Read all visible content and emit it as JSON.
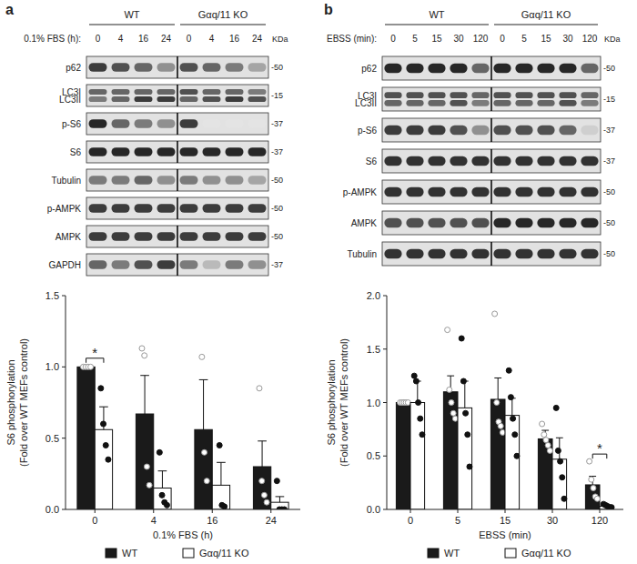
{
  "panel_labels": [
    "a",
    "b"
  ],
  "blots": [
    {
      "groups": [
        "WT",
        "Gαq/11 KO"
      ],
      "condition": "0.1% FBS (h):",
      "lanes": [
        "0",
        "4",
        "16",
        "24",
        "0",
        "4",
        "16",
        "24"
      ],
      "kda_header": "KDa",
      "rows": [
        {
          "label": [
            "p62"
          ],
          "kda": "-50",
          "bands": [
            [
              0.8,
              0.7,
              0.6,
              0.4,
              0.7,
              0.6,
              0.5,
              0.3
            ]
          ]
        },
        {
          "label": [
            "LC3I",
            "LC3II"
          ],
          "kda": "-15",
          "bands": [
            [
              0.6,
              0.6,
              0.6,
              0.6,
              0.7,
              0.6,
              0.6,
              0.5
            ],
            [
              0.5,
              0.6,
              0.8,
              0.8,
              0.6,
              0.7,
              0.8,
              0.7
            ]
          ]
        },
        {
          "label": [
            "p-S6"
          ],
          "kda": "-37",
          "bands": [
            [
              0.9,
              0.6,
              0.5,
              0.4,
              0.8,
              0,
              0,
              0
            ]
          ]
        },
        {
          "label": [
            "S6"
          ],
          "kda": "-37",
          "bands": [
            [
              0.9,
              0.9,
              0.9,
              0.9,
              0.9,
              0.9,
              0.9,
              0.9
            ]
          ]
        },
        {
          "label": [
            "Tubulin"
          ],
          "kda": "-50",
          "bands": [
            [
              0.5,
              0.5,
              0.6,
              0.4,
              0.5,
              0.4,
              0.4,
              0.3
            ]
          ]
        },
        {
          "label": [
            "p-AMPK"
          ],
          "kda": "-50",
          "bands": [
            [
              0.8,
              0.8,
              0.8,
              0.8,
              0.8,
              0.8,
              0.8,
              0.8
            ]
          ]
        },
        {
          "label": [
            "AMPK"
          ],
          "kda": "-50",
          "bands": [
            [
              0.8,
              0.8,
              0.8,
              0.8,
              0.8,
              0.8,
              0.8,
              0.8
            ]
          ]
        },
        {
          "label": [
            "GAPDH"
          ],
          "kda": "-37",
          "bands": [
            [
              0.6,
              0.5,
              0.7,
              0.8,
              0.5,
              0.2,
              0.5,
              0.4
            ]
          ]
        }
      ]
    },
    {
      "groups": [
        "WT",
        "Gαq/11 KO"
      ],
      "condition": "EBSS (min):",
      "lanes": [
        "0",
        "5",
        "15",
        "30",
        "120",
        "0",
        "5",
        "15",
        "30",
        "120"
      ],
      "kda_header": "KDa",
      "rows": [
        {
          "label": [
            "p62"
          ],
          "kda": "-50",
          "bands": [
            [
              0.9,
              0.9,
              0.9,
              0.9,
              0.6,
              0.9,
              0.9,
              0.9,
              0.9,
              0.6
            ]
          ]
        },
        {
          "label": [
            "LC3I",
            "LC3II"
          ],
          "kda": "-15",
          "bands": [
            [
              0.7,
              0.7,
              0.7,
              0.7,
              0.6,
              0.7,
              0.7,
              0.7,
              0.7,
              0.6
            ],
            [
              0.6,
              0.6,
              0.6,
              0.7,
              0.5,
              0.6,
              0.6,
              0.6,
              0.7,
              0.5
            ]
          ]
        },
        {
          "label": [
            "p-S6"
          ],
          "kda": "-37",
          "bands": [
            [
              0.8,
              0.8,
              0.8,
              0.7,
              0.4,
              0.7,
              0.7,
              0.7,
              0.6,
              0.1
            ]
          ]
        },
        {
          "label": [
            "S6"
          ],
          "kda": "-37",
          "bands": [
            [
              0.85,
              0.85,
              0.85,
              0.85,
              0.85,
              0.85,
              0.85,
              0.85,
              0.85,
              0.85
            ]
          ]
        },
        {
          "label": [
            "p-AMPK"
          ],
          "kda": "-50",
          "bands": [
            [
              0.85,
              0.85,
              0.85,
              0.85,
              0.85,
              0.85,
              0.85,
              0.85,
              0.85,
              0.85
            ]
          ]
        },
        {
          "label": [
            "AMPK"
          ],
          "kda": "-50",
          "bands": [
            [
              0.7,
              0.7,
              0.7,
              0.7,
              0.7,
              0.9,
              0.9,
              0.9,
              0.9,
              0.9
            ]
          ]
        },
        {
          "label": [
            "Tubulin"
          ],
          "kda": "-50",
          "bands": [
            [
              0.85,
              0.85,
              0.85,
              0.85,
              0.85,
              0.85,
              0.85,
              0.85,
              0.85,
              0.85
            ]
          ]
        }
      ]
    }
  ],
  "chart_data": [
    {
      "type": "bar",
      "ylabel": [
        "S6 phosphorylation",
        "(Fold over WT MEFs control)"
      ],
      "xlabel": "0.1% FBS (h)",
      "categories": [
        "0",
        "4",
        "16",
        "24"
      ],
      "ylim": [
        0,
        1.5
      ],
      "yticks": [
        {
          "value": 0,
          "label": "0.0"
        },
        0.5,
        {
          "value": 1,
          "label": "1.0"
        },
        1.5
      ],
      "legend": "bottom",
      "series": [
        {
          "name": "WT",
          "color": "#1a1a1a",
          "marker": "open",
          "values": [
            1.0,
            0.67,
            0.56,
            0.3
          ],
          "errors": [
            0.01,
            0.27,
            0.35,
            0.18
          ],
          "points": [
            [
              1.0,
              1.0,
              1.0,
              1.0
            ],
            [
              1.13,
              1.08,
              0.3,
              0.17
            ],
            [
              1.07,
              0.4,
              0.2
            ],
            [
              0.85,
              0.2,
              0.1,
              0.05
            ]
          ]
        },
        {
          "name": "Gαq/11 KO",
          "color": "#ffffff",
          "marker": "filled",
          "values": [
            0.56,
            0.15,
            0.17,
            0.05
          ],
          "errors": [
            0.16,
            0.12,
            0.16,
            0.04
          ],
          "points": [
            [
              0.85,
              0.6,
              0.45,
              0.35
            ],
            [
              0.4,
              0.1,
              0.05,
              0.03
            ],
            [
              0.45,
              0.03,
              0.02
            ],
            [
              0.2,
              0.0,
              0.0,
              0.0
            ]
          ]
        }
      ],
      "annotations": [
        {
          "text": "*",
          "category": 0
        }
      ]
    },
    {
      "type": "bar",
      "ylabel": [
        "S6 phosphorylation",
        "(Fold over WT MEFs control)"
      ],
      "xlabel": "EBSS (min)",
      "categories": [
        "0",
        "5",
        "15",
        "30",
        "120"
      ],
      "ylim": [
        0,
        2
      ],
      "yticks": [
        {
          "value": 0,
          "label": "0.0"
        },
        0.5,
        {
          "value": 1,
          "label": "1.0"
        },
        1.5,
        {
          "value": 2,
          "label": "2.0"
        }
      ],
      "legend": "bottom",
      "series": [
        {
          "name": "WT",
          "color": "#1a1a1a",
          "marker": "open",
          "values": [
            1.0,
            1.1,
            1.03,
            0.66,
            0.23
          ],
          "errors": [
            0.01,
            0.15,
            0.2,
            0.08,
            0.08
          ],
          "points": [
            [
              1.0,
              1.0,
              1.0,
              1.0,
              1.0
            ],
            [
              1.68,
              1.12,
              1.0,
              0.9,
              0.85
            ],
            [
              1.83,
              1.0,
              0.82,
              0.78,
              0.72
            ],
            [
              0.8,
              0.7,
              0.65,
              0.6,
              0.55
            ],
            [
              0.45,
              0.28,
              0.2,
              0.12,
              0.1
            ]
          ]
        },
        {
          "name": "Gαq/11 KO",
          "color": "#ffffff",
          "marker": "filled",
          "values": [
            1.0,
            0.95,
            0.88,
            0.47,
            0.03
          ],
          "errors": [
            0.2,
            0.25,
            0.16,
            0.2,
            0.01
          ],
          "points": [
            [
              1.25,
              1.2,
              1.0,
              0.85,
              0.7
            ],
            [
              1.6,
              1.2,
              0.9,
              0.7,
              0.4
            ],
            [
              1.3,
              1.05,
              0.85,
              0.7,
              0.5
            ],
            [
              0.95,
              0.55,
              0.45,
              0.3,
              0.1
            ],
            [
              0.05,
              0.04,
              0.03,
              0.02,
              0.02
            ]
          ]
        }
      ],
      "annotations": [
        {
          "text": "*",
          "category": 4
        }
      ]
    }
  ]
}
